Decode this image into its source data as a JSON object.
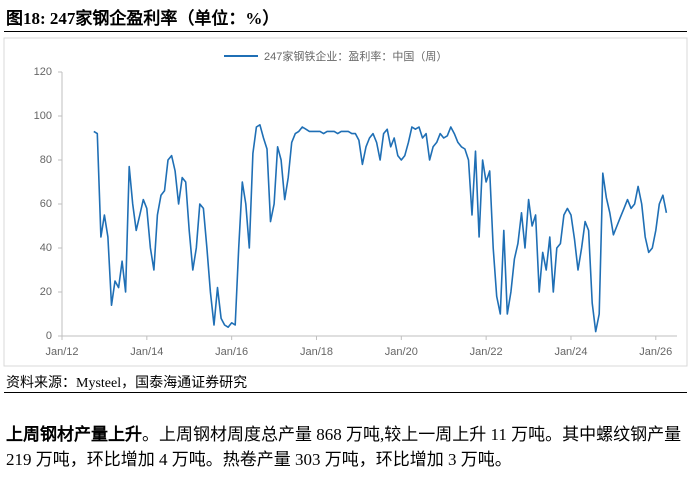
{
  "figure_title": "图18:  247家钢企盈利率（单位：%）",
  "chart_data": {
    "type": "line",
    "legend": "top",
    "grid": false,
    "ylim": [
      0,
      120
    ],
    "yticks": [
      0,
      20,
      40,
      60,
      80,
      100,
      120
    ],
    "xlim": [
      "2012-01",
      "2026-07"
    ],
    "xticks": [
      {
        "value": "2012-01",
        "label": "Jan/12"
      },
      {
        "value": "2014-01",
        "label": "Jan/14"
      },
      {
        "value": "2016-01",
        "label": "Jan/16"
      },
      {
        "value": "2018-01",
        "label": "Jan/18"
      },
      {
        "value": "2020-01",
        "label": "Jan/20"
      },
      {
        "value": "2022-01",
        "label": "Jan/22"
      },
      {
        "value": "2024-01",
        "label": "Jan/24"
      },
      {
        "value": "2026-01",
        "label": "Jan/26"
      }
    ],
    "x": [
      "2012-10",
      "2012-11",
      "2012-12",
      "2013-01",
      "2013-02",
      "2013-03",
      "2013-04",
      "2013-05",
      "2013-06",
      "2013-07",
      "2013-08",
      "2013-09",
      "2013-10",
      "2013-11",
      "2013-12",
      "2014-01",
      "2014-02",
      "2014-03",
      "2014-04",
      "2014-05",
      "2014-06",
      "2014-07",
      "2014-08",
      "2014-09",
      "2014-10",
      "2014-11",
      "2014-12",
      "2015-01",
      "2015-02",
      "2015-03",
      "2015-04",
      "2015-05",
      "2015-06",
      "2015-07",
      "2015-08",
      "2015-09",
      "2015-10",
      "2015-11",
      "2015-12",
      "2016-01",
      "2016-02",
      "2016-03",
      "2016-04",
      "2016-05",
      "2016-06",
      "2016-07",
      "2016-08",
      "2016-09",
      "2016-10",
      "2016-11",
      "2016-12",
      "2017-01",
      "2017-02",
      "2017-03",
      "2017-04",
      "2017-05",
      "2017-06",
      "2017-07",
      "2017-08",
      "2017-09",
      "2017-10",
      "2017-11",
      "2017-12",
      "2018-01",
      "2018-02",
      "2018-03",
      "2018-04",
      "2018-05",
      "2018-06",
      "2018-07",
      "2018-08",
      "2018-09",
      "2018-10",
      "2018-11",
      "2018-12",
      "2019-01",
      "2019-02",
      "2019-03",
      "2019-04",
      "2019-05",
      "2019-06",
      "2019-07",
      "2019-08",
      "2019-09",
      "2019-10",
      "2019-11",
      "2019-12",
      "2020-01",
      "2020-02",
      "2020-03",
      "2020-04",
      "2020-05",
      "2020-06",
      "2020-07",
      "2020-08",
      "2020-09",
      "2020-10",
      "2020-11",
      "2020-12",
      "2021-01",
      "2021-02",
      "2021-03",
      "2021-04",
      "2021-05",
      "2021-06",
      "2021-07",
      "2021-08",
      "2021-09",
      "2021-10",
      "2021-11",
      "2021-12",
      "2022-01",
      "2022-02",
      "2022-03",
      "2022-04",
      "2022-05",
      "2022-06",
      "2022-07",
      "2022-08",
      "2022-09",
      "2022-10",
      "2022-11",
      "2022-12",
      "2023-01",
      "2023-02",
      "2023-03",
      "2023-04",
      "2023-05",
      "2023-06",
      "2023-07",
      "2023-08",
      "2023-09",
      "2023-10",
      "2023-11",
      "2023-12",
      "2024-01",
      "2024-02",
      "2024-03",
      "2024-04",
      "2024-05",
      "2024-06",
      "2024-07",
      "2024-08",
      "2024-09",
      "2024-10",
      "2024-11",
      "2024-12",
      "2025-01",
      "2025-02",
      "2025-03",
      "2025-04",
      "2025-05",
      "2025-06",
      "2025-07",
      "2025-08",
      "2025-09",
      "2025-10",
      "2025-11",
      "2025-12",
      "2026-01",
      "2026-02",
      "2026-03",
      "2026-04"
    ],
    "series": [
      {
        "name": "247家钢铁企业：盈利率：中国（周）",
        "color": "#1f6fb5",
        "values": [
          93,
          92,
          45,
          55,
          45,
          14,
          25,
          22,
          34,
          20,
          77,
          60,
          48,
          55,
          62,
          58,
          40,
          30,
          55,
          64,
          66,
          80,
          82,
          75,
          60,
          72,
          70,
          48,
          30,
          40,
          60,
          58,
          40,
          20,
          5,
          22,
          8,
          5,
          4,
          6,
          5,
          40,
          70,
          60,
          40,
          83,
          95,
          96,
          90,
          85,
          52,
          60,
          86,
          80,
          62,
          72,
          88,
          92,
          93,
          95,
          94,
          93,
          93,
          93,
          93,
          92,
          93,
          93,
          93,
          92,
          93,
          93,
          93,
          92,
          92,
          89,
          78,
          86,
          90,
          92,
          88,
          80,
          92,
          94,
          86,
          90,
          82,
          80,
          82,
          88,
          95,
          94,
          95,
          90,
          92,
          80,
          86,
          88,
          92,
          90,
          91,
          95,
          92,
          88,
          86,
          85,
          80,
          55,
          84,
          45,
          80,
          70,
          75,
          40,
          18,
          10,
          48,
          10,
          20,
          35,
          42,
          56,
          40,
          62,
          50,
          55,
          20,
          38,
          30,
          45,
          20,
          40,
          42,
          55,
          58,
          55,
          44,
          30,
          40,
          52,
          48,
          15,
          2,
          10,
          74,
          63,
          56,
          46,
          50,
          54,
          58,
          62,
          58,
          60,
          68,
          60,
          45,
          38,
          40,
          48,
          60,
          64,
          56
        ]
      }
    ]
  },
  "source": "资料来源：Mysteel，国泰海通证券研究",
  "paragraph": {
    "lead": "上周钢材产量上升",
    "text": "。上周钢材周度总产量 868 万吨,较上一周上升 11 万吨。其中螺纹钢产量 219 万吨，环比增加 4 万吨。热卷产量 303 万吨，环比增加 3 万吨。"
  }
}
